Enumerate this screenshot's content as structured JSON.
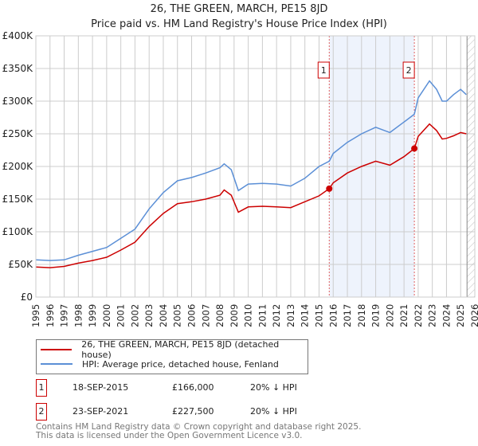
{
  "title": "26, THE GREEN, MARCH, PE15 8JD",
  "subtitle": "Price paid vs. HM Land Registry's House Price Index (HPI)",
  "chart_data": {
    "type": "line",
    "title": "26, THE GREEN, MARCH, PE15 8JD — Price paid vs. HM Land Registry's House Price Index (HPI)",
    "xlim": [
      1995,
      2026
    ],
    "ylim": [
      0,
      400000
    ],
    "x_ticks": [
      "1995",
      "1996",
      "1997",
      "1998",
      "1999",
      "2000",
      "2001",
      "2002",
      "2003",
      "2004",
      "2005",
      "2006",
      "2007",
      "2008",
      "2009",
      "2010",
      "2011",
      "2012",
      "2013",
      "2014",
      "2015",
      "2016",
      "2017",
      "2018",
      "2019",
      "2020",
      "2021",
      "2022",
      "2023",
      "2024",
      "2025",
      "2026"
    ],
    "y_ticks": [
      {
        "v": 0,
        "label": "£0"
      },
      {
        "v": 50000,
        "label": "£50K"
      },
      {
        "v": 100000,
        "label": "£100K"
      },
      {
        "v": 150000,
        "label": "£150K"
      },
      {
        "v": 200000,
        "label": "£200K"
      },
      {
        "v": 250000,
        "label": "£250K"
      },
      {
        "v": 300000,
        "label": "£300K"
      },
      {
        "v": 350000,
        "label": "£350K"
      },
      {
        "v": 400000,
        "label": "£400K"
      }
    ],
    "grid": true,
    "shaded_range": [
      2015.72,
      2021.73
    ],
    "forecast_hatch_from": 2025.45,
    "series": [
      {
        "name": "26, THE GREEN, MARCH, PE15 8JD (detached house)",
        "color": "#cc0000",
        "x": [
          1995,
          1996,
          1997,
          1998,
          1999,
          2000,
          2001,
          2002,
          2003,
          2004,
          2005,
          2006,
          2007,
          2008,
          2008.3,
          2008.8,
          2009.3,
          2010,
          2011,
          2012,
          2013,
          2014,
          2015,
          2015.72,
          2016,
          2017,
          2018,
          2019,
          2020,
          2021,
          2021.73,
          2022,
          2022.8,
          2023.3,
          2023.7,
          2024,
          2024.5,
          2025,
          2025.4
        ],
        "y": [
          46000,
          45000,
          47000,
          52000,
          56000,
          61000,
          72000,
          84000,
          108000,
          128000,
          143000,
          146000,
          150000,
          156000,
          164000,
          156000,
          130000,
          138000,
          139000,
          138000,
          137000,
          146000,
          155000,
          166000,
          175000,
          190000,
          200000,
          208000,
          202000,
          215000,
          227500,
          246000,
          265000,
          255000,
          242000,
          243000,
          247000,
          252000,
          250000
        ]
      },
      {
        "name": "HPI: Average price, detached house, Fenland",
        "color": "#5b8fd6",
        "x": [
          1995,
          1996,
          1997,
          1998,
          1999,
          2000,
          2001,
          2002,
          2003,
          2004,
          2005,
          2006,
          2007,
          2008,
          2008.3,
          2008.8,
          2009.3,
          2010,
          2011,
          2012,
          2013,
          2014,
          2015,
          2015.72,
          2016,
          2017,
          2018,
          2019,
          2020,
          2021,
          2021.73,
          2022,
          2022.8,
          2023.3,
          2023.7,
          2024,
          2024.5,
          2025,
          2025.4
        ],
        "y": [
          57000,
          56000,
          57000,
          64000,
          70000,
          76000,
          90000,
          104000,
          135000,
          160000,
          178000,
          183000,
          190000,
          198000,
          204000,
          195000,
          163000,
          173000,
          174000,
          173000,
          170000,
          182000,
          200000,
          208000,
          220000,
          237000,
          250000,
          260000,
          252000,
          268000,
          280000,
          305000,
          331000,
          318000,
          300000,
          300000,
          310000,
          318000,
          310000
        ]
      }
    ],
    "annotations": [
      {
        "label": "1",
        "x": 2015.72,
        "y": 166000
      },
      {
        "label": "2",
        "x": 2021.73,
        "y": 227500
      }
    ]
  },
  "legend": [
    {
      "label": "26, THE GREEN, MARCH, PE15 8JD (detached house)",
      "color": "#cc0000"
    },
    {
      "label": "HPI: Average price, detached house, Fenland",
      "color": "#5b8fd6"
    }
  ],
  "sales": [
    {
      "num": "1",
      "date": "18-SEP-2015",
      "price": "£166,000",
      "hpi": "20% ↓ HPI"
    },
    {
      "num": "2",
      "date": "23-SEP-2021",
      "price": "£227,500",
      "hpi": "20% ↓ HPI"
    }
  ],
  "footer": {
    "line1": "Contains HM Land Registry data © Crown copyright and database right 2025.",
    "line2": "This data is licensed under the Open Government Licence v3.0."
  }
}
